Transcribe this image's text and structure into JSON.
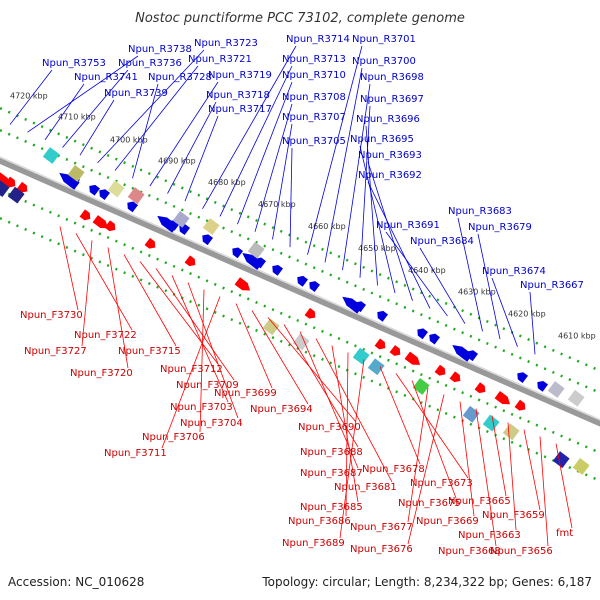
{
  "title": "Nostoc punctiforme PCC 73102, complete genome",
  "footer": {
    "accession": "Accession: NC_010628",
    "summary": "Topology: circular; Length: 8,234,322 bp; Genes: 6,187"
  },
  "colors": {
    "forward": "#ff0000",
    "reverse": "#0000dd",
    "forward_label": "#cc0000",
    "reverse_label": "#0000cc",
    "backbone": "#888888",
    "tick_line": "#22aa22"
  },
  "ticks": [
    "4720 kbp",
    "4710 kbp",
    "4700 kbp",
    "4690 kbp",
    "4680 kbp",
    "4670 kbp",
    "4660 kbp",
    "4650 kbp",
    "4640 kbp",
    "4630 kbp",
    "4620 kbp",
    "4610 kbp"
  ],
  "reverse_labels": [
    "Npun_R3753",
    "Npun_R3738",
    "Npun_R3741",
    "Npun_R3736",
    "Npun_R3739",
    "Npun_R3723",
    "Npun_R3721",
    "Npun_R3728",
    "Npun_R3719",
    "Npun_R3718",
    "Npun_R3717",
    "Npun_R3714",
    "Npun_R3713",
    "Npun_R3710",
    "Npun_R3708",
    "Npun_R3707",
    "Npun_R3705",
    "Npun_R3701",
    "Npun_R3700",
    "Npun_R3698",
    "Npun_R3697",
    "Npun_R3696",
    "Npun_R3695",
    "Npun_R3693",
    "Npun_R3692",
    "Npun_R3691",
    "Npun_R3684",
    "Npun_R3683",
    "Npun_R3679",
    "Npun_R3674",
    "Npun_R3667"
  ],
  "forward_labels": [
    "Npun_F3730",
    "Npun_F3722",
    "Npun_F3727",
    "Npun_F3720",
    "Npun_F3715",
    "Npun_F3712",
    "Npun_F3709",
    "Npun_F3703",
    "Npun_F3704",
    "Npun_F3706",
    "Npun_F3711",
    "Npun_F3699",
    "Npun_F3694",
    "Npun_F3690",
    "Npun_F3688",
    "Npun_F3687",
    "Npun_F3681",
    "Npun_F3685",
    "Npun_F3686",
    "Npun_F3689",
    "Npun_F3678",
    "Npun_F3673",
    "Npun_F3675",
    "Npun_F3677",
    "Npun_F3676",
    "Npun_F3669",
    "Npun_F3668",
    "Npun_F3665",
    "Npun_F3663",
    "Npun_F3659",
    "Npun_F3656",
    "fmt"
  ]
}
